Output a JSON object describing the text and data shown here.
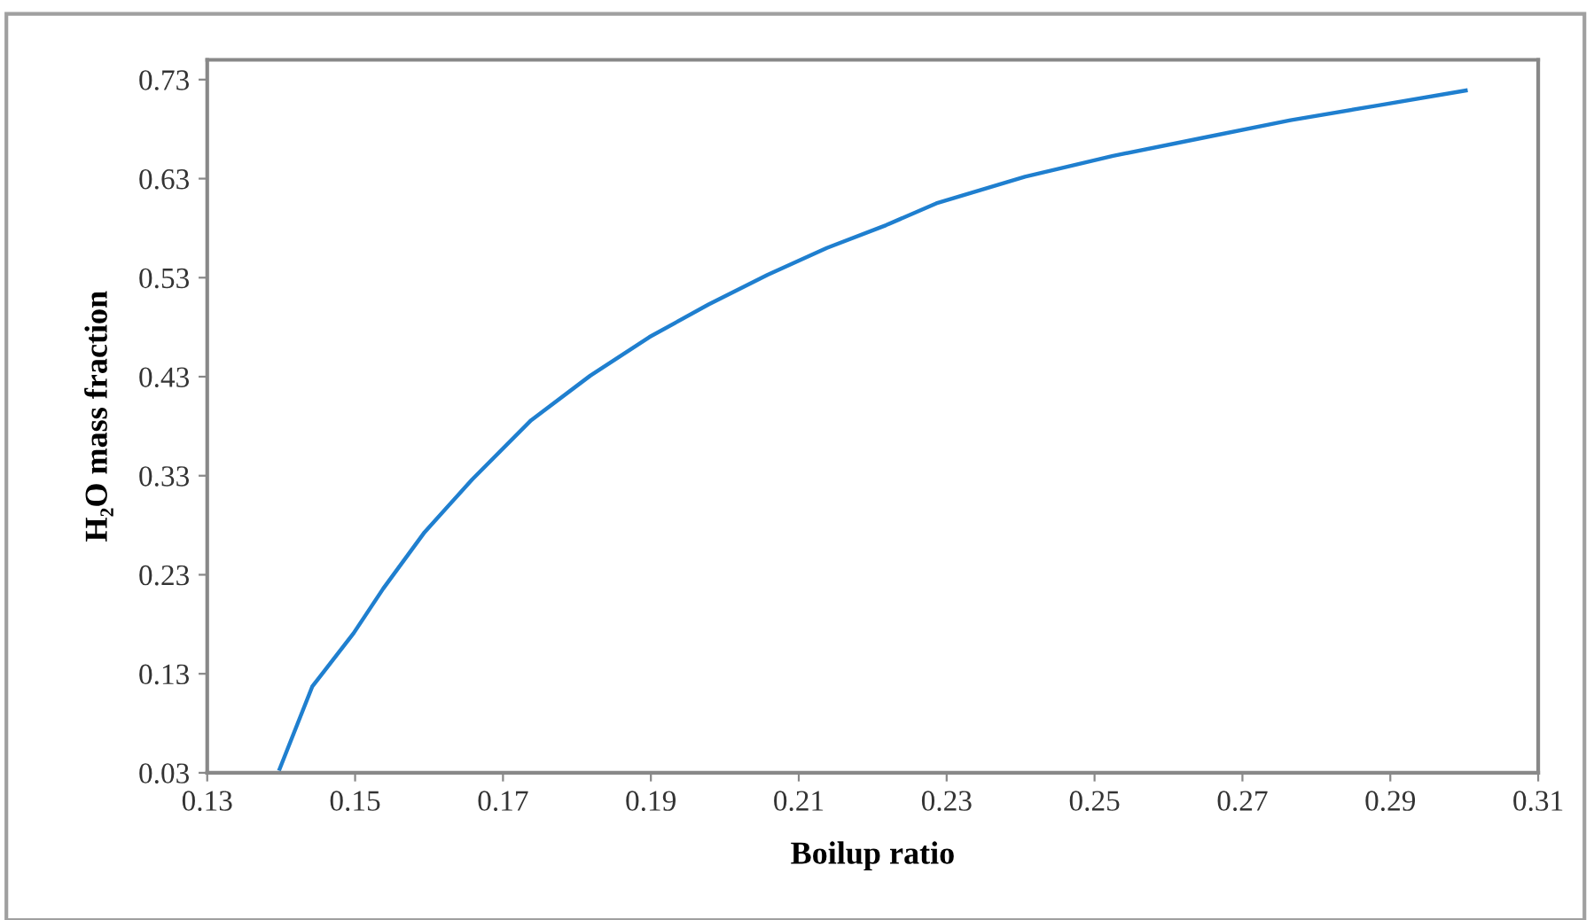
{
  "chart_data": {
    "type": "line",
    "xlabel": "Boilup ratio",
    "ylabel": "H₂O mass fraction",
    "xlim": [
      0.13,
      0.31
    ],
    "xticks": [
      0.13,
      0.15,
      0.17,
      0.19,
      0.21,
      0.23,
      0.25,
      0.27,
      0.29,
      0.31
    ],
    "ylim": [
      0.03,
      0.75
    ],
    "yticks": [
      0.03,
      0.13,
      0.23,
      0.33,
      0.43,
      0.53,
      0.63,
      0.73
    ],
    "grid": false,
    "marker": "none",
    "line_style": "solid",
    "series": [
      {
        "color": "#1f7fcf",
        "x": [
          0.1398,
          0.1442,
          0.1498,
          0.1538,
          0.1594,
          0.1658,
          0.1738,
          0.1818,
          0.1898,
          0.1978,
          0.2058,
          0.2138,
          0.2218,
          0.2286,
          0.2406,
          0.2525,
          0.2645,
          0.2765,
          0.2884,
          0.3002
        ],
        "values": [
          0.034,
          0.117,
          0.171,
          0.216,
          0.273,
          0.326,
          0.386,
          0.431,
          0.47,
          0.503,
          0.533,
          0.56,
          0.583,
          0.605,
          0.632,
          0.653,
          0.671,
          0.689,
          0.704,
          0.719
        ]
      }
    ]
  }
}
